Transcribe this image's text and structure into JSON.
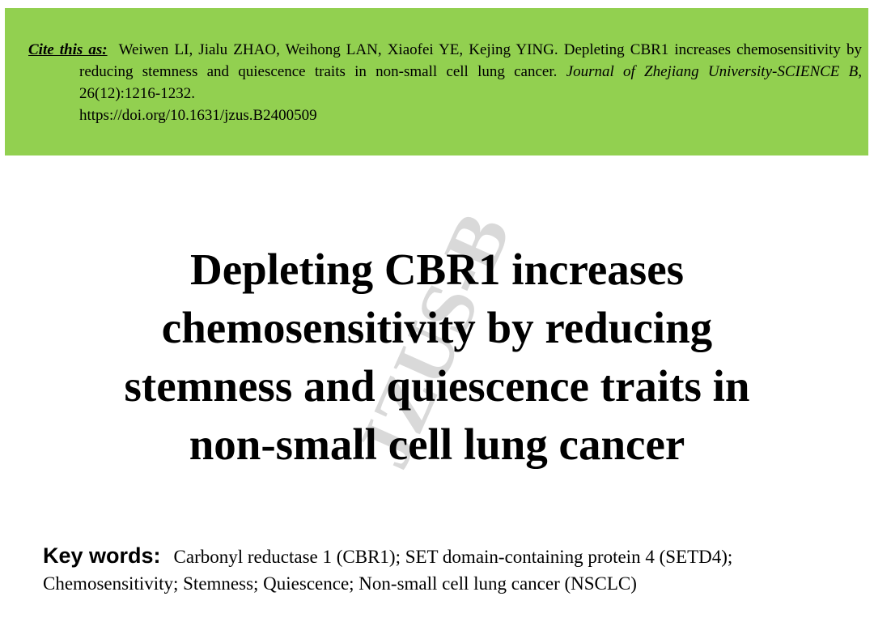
{
  "citation": {
    "label": "Cite this as:",
    "text": "Weiwen LI, Jialu ZHAO, Weihong LAN, Xiaofei YE, Kejing YING. Depleting CBR1 increases chemosensitivity by reducing stemness and quiescence traits in non-small cell lung cancer.",
    "journal": "Journal of Zhejiang University-SCIENCE B,",
    "volume": "26(12):1216-1232.",
    "doi": "https://doi.org/10.1631/jzus.B2400509"
  },
  "watermark": "JZUS-B",
  "title_lines": [
    "Depleting CBR1 increases",
    "chemosensitivity by reducing",
    "stemness and quiescence traits in",
    "non-small cell lung cancer"
  ],
  "keywords": {
    "label": "Key words:",
    "text": "Carbonyl reductase 1 (CBR1); SET domain-containing protein 4 (SETD4); Chemosensitivity; Stemness; Quiescence; Non-small cell lung cancer (NSCLC)"
  }
}
